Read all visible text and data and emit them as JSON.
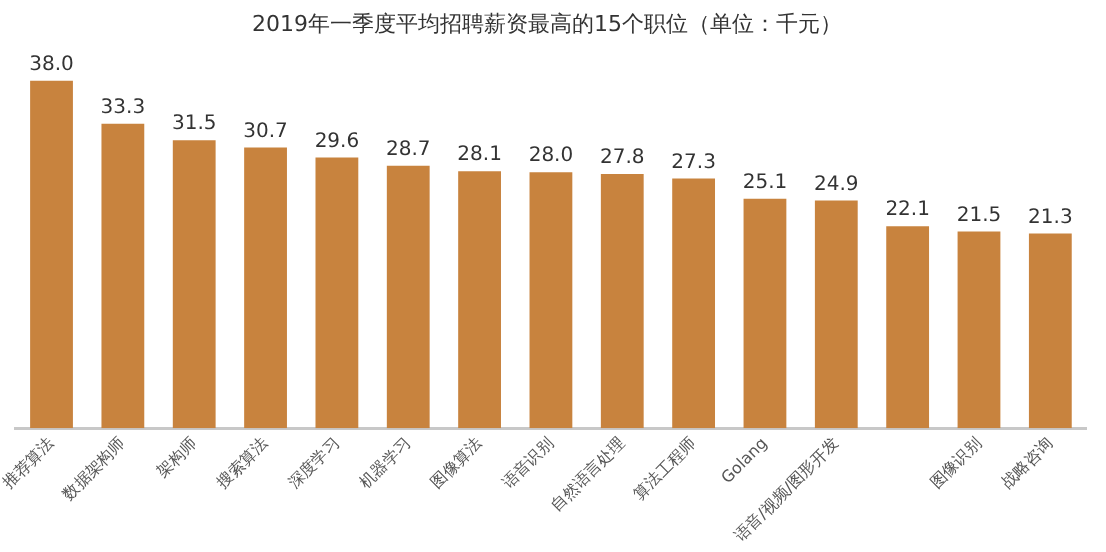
{
  "chart_data": {
    "type": "bar",
    "title": "2019年一季度平均招聘薪资最高的15个职位（单位：千元）",
    "categories": [
      "推荐算法",
      "数据架构师",
      "架构师",
      "搜索算法",
      "深度学习",
      "机器学习",
      "图像算法",
      "语音识别",
      "自然语言处理",
      "算法工程师",
      "Golang",
      "语音/视频/图形开发",
      null,
      "图像识别",
      "战略咨询"
    ],
    "values": [
      38.0,
      33.3,
      31.5,
      30.7,
      29.6,
      28.7,
      28.1,
      28.0,
      27.8,
      27.3,
      25.1,
      24.9,
      22.1,
      21.5,
      21.3
    ],
    "value_labels": [
      "38.0",
      "33.3",
      "31.5",
      "30.7",
      "29.6",
      "28.7",
      "28.1",
      "28.0",
      "27.8",
      "27.3",
      "25.1",
      "24.9",
      "22.1",
      "21.5",
      "21.3"
    ],
    "color": "#c8833e",
    "grid": false,
    "legend": false
  }
}
